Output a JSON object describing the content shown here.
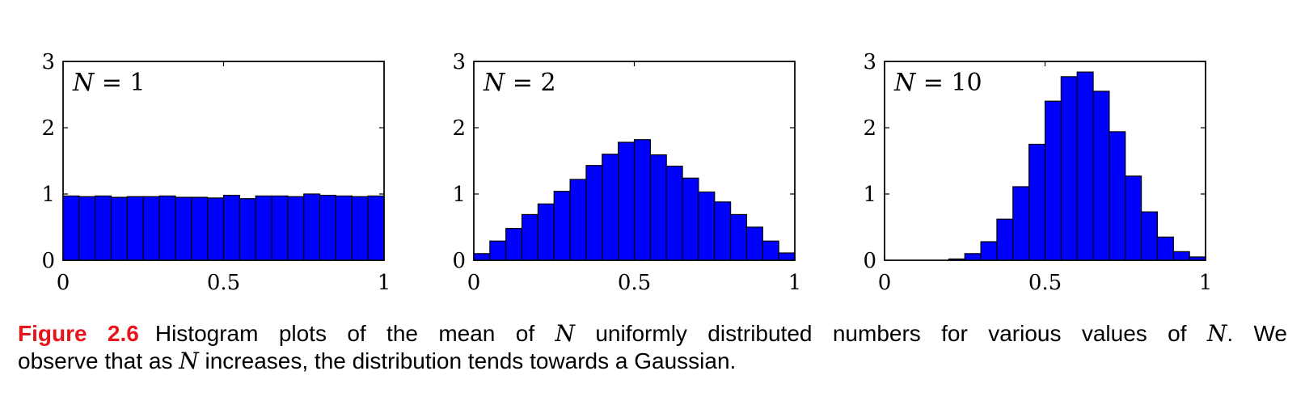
{
  "chart_data": [
    {
      "type": "bar",
      "annotation": {
        "var": "N",
        "op": "=",
        "value": "1"
      },
      "x_range": [
        0,
        1
      ],
      "ylim": [
        0,
        3
      ],
      "xticks": [
        "0",
        "0.5",
        "1"
      ],
      "yticks": [
        "0",
        "1",
        "2",
        "3"
      ],
      "bin_width": 0.05,
      "values": [
        0.97,
        0.96,
        0.97,
        0.95,
        0.96,
        0.96,
        0.97,
        0.95,
        0.95,
        0.94,
        0.98,
        0.93,
        0.97,
        0.97,
        0.96,
        1.0,
        0.98,
        0.97,
        0.96,
        0.97
      ],
      "bar_color": "#0000ff"
    },
    {
      "type": "bar",
      "annotation": {
        "var": "N",
        "op": "=",
        "value": "2"
      },
      "x_range": [
        0,
        1
      ],
      "ylim": [
        0,
        3
      ],
      "xticks": [
        "0",
        "0.5",
        "1"
      ],
      "yticks": [
        "0",
        "1",
        "2",
        "3"
      ],
      "bin_width": 0.05,
      "values": [
        0.1,
        0.29,
        0.48,
        0.69,
        0.85,
        1.04,
        1.22,
        1.43,
        1.6,
        1.78,
        1.82,
        1.59,
        1.42,
        1.24,
        1.03,
        0.88,
        0.69,
        0.5,
        0.29,
        0.11
      ],
      "bar_color": "#0000ff"
    },
    {
      "type": "bar",
      "annotation": {
        "var": "N",
        "op": "=",
        "value": "10"
      },
      "x_range": [
        0,
        1
      ],
      "ylim": [
        0,
        3
      ],
      "xticks": [
        "0",
        "0.5",
        "1"
      ],
      "yticks": [
        "0",
        "1",
        "2",
        "3"
      ],
      "bin_width": 0.05,
      "values": [
        0.0,
        0.0,
        0.0,
        0.0,
        0.0,
        0.02,
        0.1,
        0.28,
        0.62,
        1.11,
        1.75,
        2.4,
        2.77,
        2.84,
        2.55,
        1.94,
        1.27,
        0.73,
        0.35,
        0.13,
        0.05,
        0.01
      ],
      "bin_start": -0.05,
      "bar_color": "#0000ff"
    }
  ],
  "caption": {
    "label": "Figure 2.6",
    "line1_a": "Histogram plots of the mean of",
    "var1": "N",
    "line1_b": "uniformly distributed numbers for various values of",
    "var2": "N",
    "line1_c": ".  We",
    "line2_a": "observe that as",
    "var3": "N",
    "line2_b": "increases, the distribution tends towards a Gaussian."
  }
}
